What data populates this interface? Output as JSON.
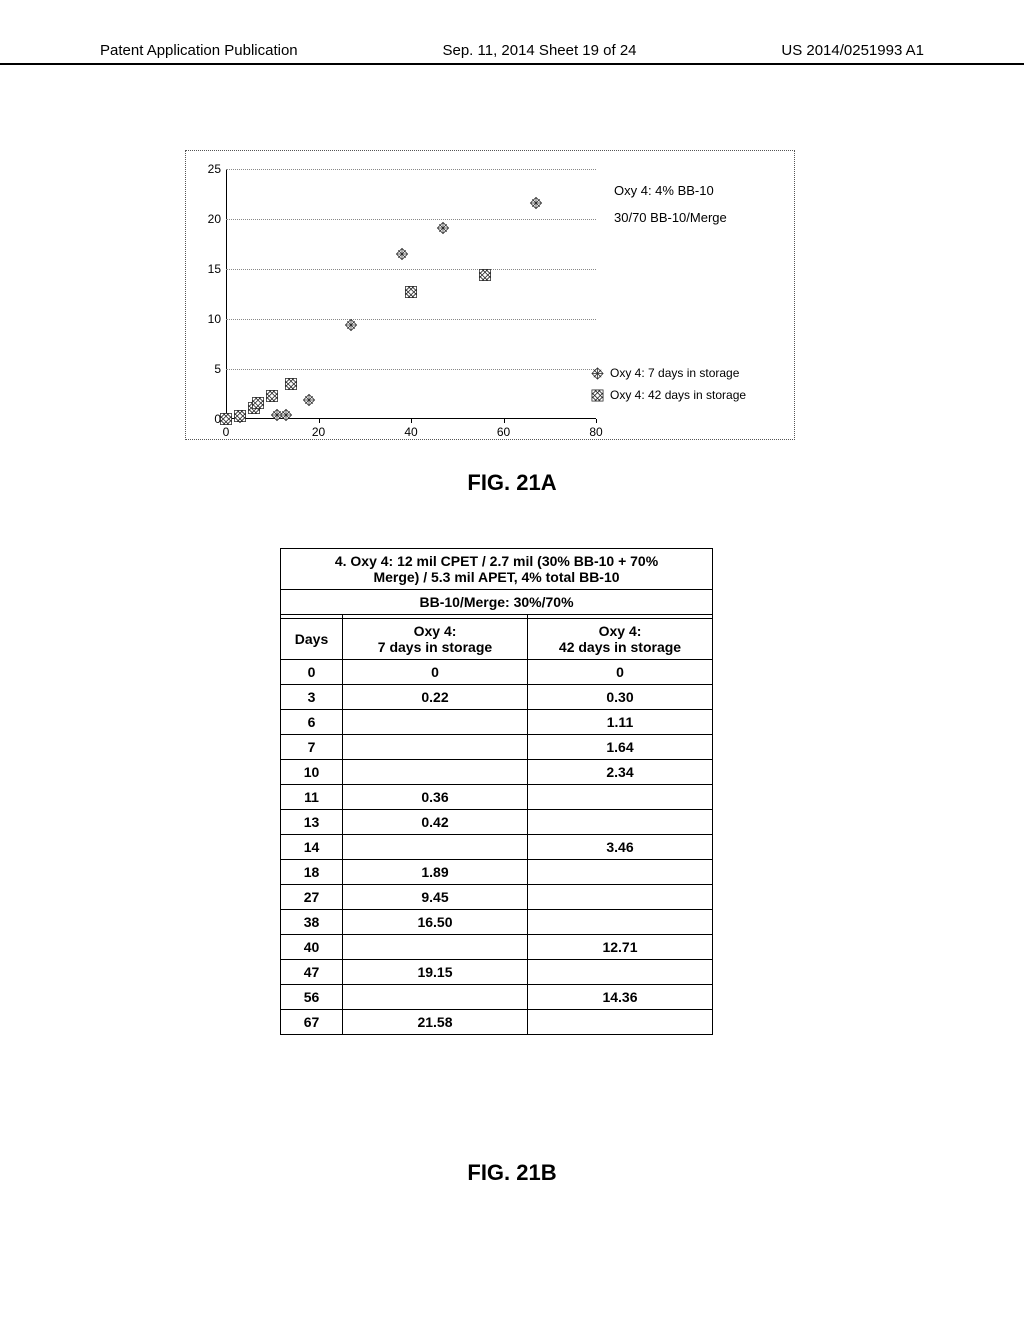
{
  "header": {
    "left": "Patent Application Publication",
    "center": "Sep. 11, 2014  Sheet 19 of 24",
    "right": "US 2014/0251993 A1"
  },
  "chart": {
    "type": "scatter",
    "xlim": [
      0,
      80
    ],
    "ylim": [
      0,
      25
    ],
    "xtick_step": 20,
    "ytick_step": 5,
    "title_labels": {
      "line1": "Oxy 4: 4% BB-10",
      "line2": "30/70 BB-10/Merge"
    },
    "legend": {
      "s7": "Oxy 4: 7 days in storage",
      "s42": "Oxy 4: 42 days in storage"
    },
    "series_7": [
      {
        "x": 0,
        "y": 0
      },
      {
        "x": 3,
        "y": 0.22
      },
      {
        "x": 11,
        "y": 0.36
      },
      {
        "x": 13,
        "y": 0.42
      },
      {
        "x": 18,
        "y": 1.89
      },
      {
        "x": 27,
        "y": 9.45
      },
      {
        "x": 38,
        "y": 16.5
      },
      {
        "x": 47,
        "y": 19.15
      },
      {
        "x": 67,
        "y": 21.58
      }
    ],
    "series_42": [
      {
        "x": 0,
        "y": 0
      },
      {
        "x": 3,
        "y": 0.3
      },
      {
        "x": 6,
        "y": 1.11
      },
      {
        "x": 7,
        "y": 1.64
      },
      {
        "x": 10,
        "y": 2.34
      },
      {
        "x": 14,
        "y": 3.46
      },
      {
        "x": 40,
        "y": 12.71
      },
      {
        "x": 56,
        "y": 14.36
      }
    ],
    "marker_fill": "#ffffff",
    "marker_stroke": "#222222",
    "grid_color": "#888888",
    "background_color": "#ffffff"
  },
  "figure_labels": {
    "a": "FIG. 21A",
    "b": "FIG. 21B"
  },
  "table": {
    "title_line1": "4. Oxy 4: 12 mil CPET / 2.7 mil (30% BB-10 + 70%",
    "title_line2": "Merge) / 5.3 mil APET, 4% total BB-10",
    "subtitle": "BB-10/Merge: 30%/70%",
    "col_days": "Days",
    "col_7a": "Oxy 4:",
    "col_7b": "7 days in storage",
    "col_42a": "Oxy 4:",
    "col_42b": "42 days in storage",
    "rows": [
      {
        "d": "0",
        "a": "0",
        "b": "0"
      },
      {
        "d": "3",
        "a": "0.22",
        "b": "0.30"
      },
      {
        "d": "6",
        "a": "",
        "b": "1.11"
      },
      {
        "d": "7",
        "a": "",
        "b": "1.64"
      },
      {
        "d": "10",
        "a": "",
        "b": "2.34"
      },
      {
        "d": "11",
        "a": "0.36",
        "b": ""
      },
      {
        "d": "13",
        "a": "0.42",
        "b": ""
      },
      {
        "d": "14",
        "a": "",
        "b": "3.46"
      },
      {
        "d": "18",
        "a": "1.89",
        "b": ""
      },
      {
        "d": "27",
        "a": "9.45",
        "b": ""
      },
      {
        "d": "38",
        "a": "16.50",
        "b": ""
      },
      {
        "d": "40",
        "a": "",
        "b": "12.71"
      },
      {
        "d": "47",
        "a": "19.15",
        "b": ""
      },
      {
        "d": "56",
        "a": "",
        "b": "14.36"
      },
      {
        "d": "67",
        "a": "21.58",
        "b": ""
      }
    ]
  }
}
